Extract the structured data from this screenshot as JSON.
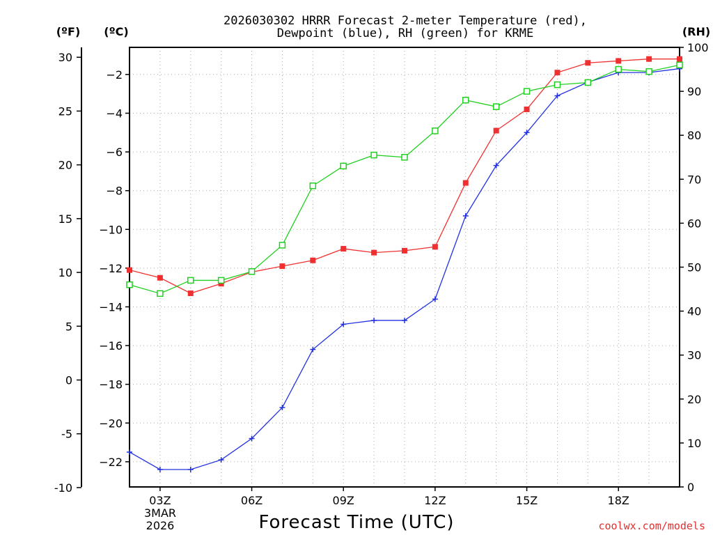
{
  "chart_data": {
    "type": "line",
    "title_line1": "2026030302 HRRR Forecast 2-meter Temperature (red),",
    "title_line2": "Dewpoint (blue), RH (green) for KRME",
    "xlabel": "Forecast Time (UTC)",
    "credit": "coolwx.com/models",
    "unit_left_f": "(ºF)",
    "unit_left_c": "(ºC)",
    "unit_right": "(RH)",
    "x_hours": [
      2,
      3,
      4,
      5,
      6,
      7,
      8,
      9,
      10,
      11,
      12,
      13,
      14,
      15,
      16,
      17,
      18,
      19,
      20
    ],
    "x_ticks": [
      {
        "hour": 3,
        "label": "03Z"
      },
      {
        "hour": 6,
        "label": "06Z"
      },
      {
        "hour": 9,
        "label": "09Z"
      },
      {
        "hour": 12,
        "label": "12Z"
      },
      {
        "hour": 15,
        "label": "15Z"
      },
      {
        "hour": 18,
        "label": "18Z"
      }
    ],
    "date_label_line1": "3MAR",
    "date_label_line2": "2026",
    "xlim": [
      2,
      20
    ],
    "ylim_c": [
      -23.3,
      -0.6
    ],
    "ylim_rh": [
      0,
      100
    ],
    "yticks_f": [
      "30",
      "25",
      "20",
      "15",
      "10",
      "5",
      "0",
      "-5",
      "-10"
    ],
    "yticks_f_values": [
      30,
      25,
      20,
      15,
      10,
      5,
      0,
      -5,
      -10
    ],
    "yticks_c": [
      "-2",
      "-4",
      "-6",
      "-8",
      "-10",
      "-12",
      "-14",
      "-16",
      "-18",
      "-20",
      "-22"
    ],
    "yticks_c_values": [
      -2,
      -4,
      -6,
      -8,
      -10,
      -12,
      -14,
      -16,
      -18,
      -20,
      -22
    ],
    "yticks_rh": [
      "100",
      "90",
      "80",
      "70",
      "60",
      "50",
      "40",
      "30",
      "20",
      "10",
      "0"
    ],
    "yticks_rh_values": [
      100,
      90,
      80,
      70,
      60,
      50,
      40,
      30,
      20,
      10,
      0
    ],
    "grid": true,
    "series": [
      {
        "name": "Temperature",
        "color": "#f03030",
        "marker": "filled-square",
        "axis": "celsius",
        "values": [
          -12.1,
          -12.5,
          -13.3,
          -12.8,
          -12.2,
          -11.9,
          -11.6,
          -11.0,
          -11.2,
          -11.1,
          -10.9,
          -7.6,
          -4.9,
          -3.8,
          -1.9,
          -1.4,
          -1.3,
          -1.2,
          -1.2
        ]
      },
      {
        "name": "Dewpoint",
        "color": "#2030e0",
        "marker": "plus",
        "axis": "celsius",
        "values": [
          -21.5,
          -22.4,
          -22.4,
          -21.9,
          -20.8,
          -19.2,
          -16.2,
          -14.9,
          -14.7,
          -14.7,
          -13.6,
          -9.3,
          -6.7,
          -5.0,
          -3.1,
          -2.4,
          -1.9,
          -1.9,
          -1.7
        ]
      },
      {
        "name": "RH",
        "color": "#20d020",
        "marker": "open-square",
        "axis": "rh",
        "values": [
          46,
          44,
          47,
          47,
          49,
          55,
          68.5,
          73,
          75.5,
          75,
          81,
          88,
          86.5,
          90,
          91.5,
          92,
          95,
          94.5,
          96
        ]
      }
    ]
  }
}
